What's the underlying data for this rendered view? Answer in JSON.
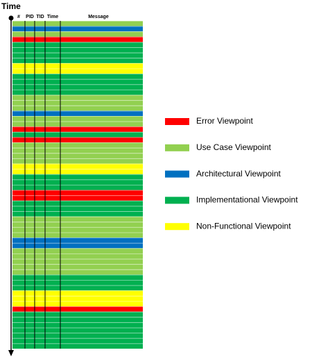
{
  "title": "Time",
  "columns": [
    "#",
    "PID",
    "TID",
    "Time",
    "Message"
  ],
  "legend": [
    {
      "label": "Error Viewpoint",
      "color": "#ff0000"
    },
    {
      "label": "Use Case Viewpoint",
      "color": "#92d050"
    },
    {
      "label": "Architectural Viewpoint",
      "color": "#0070c0"
    },
    {
      "label": "Implementational Viewpoint",
      "color": "#00b050"
    },
    {
      "label": "Non-Functional Viewpoint",
      "color": "#ffff00"
    }
  ],
  "rows": [
    "#92d050",
    "#0070c0",
    "#92d050",
    "#ff0000",
    "#00b050",
    "#00b050",
    "#00b050",
    "#00b050",
    "#ffff00",
    "#ffff00",
    "#00b050",
    "#00b050",
    "#00b050",
    "#00b050",
    "#92d050",
    "#92d050",
    "#92d050",
    "#0070c0",
    "#92d050",
    "#92d050",
    "#ff0000",
    "#00b050",
    "#ff0000",
    "#92d050",
    "#92d050",
    "#92d050",
    "#92d050",
    "#ffff00",
    "#ffff00",
    "#00b050",
    "#00b050",
    "#00b050",
    "#ff0000",
    "#ff0000",
    "#00b050",
    "#00b050",
    "#00b050",
    "#92d050",
    "#92d050",
    "#92d050",
    "#92d050",
    "#0070c0",
    "#0070c0",
    "#92d050",
    "#92d050",
    "#92d050",
    "#92d050",
    "#92d050",
    "#00b050",
    "#00b050",
    "#00b050",
    "#ffff00",
    "#ffff00",
    "#ffff00",
    "#ff0000",
    "#00b050",
    "#00b050",
    "#00b050",
    "#00b050",
    "#00b050",
    "#00b050",
    "#00b050"
  ]
}
